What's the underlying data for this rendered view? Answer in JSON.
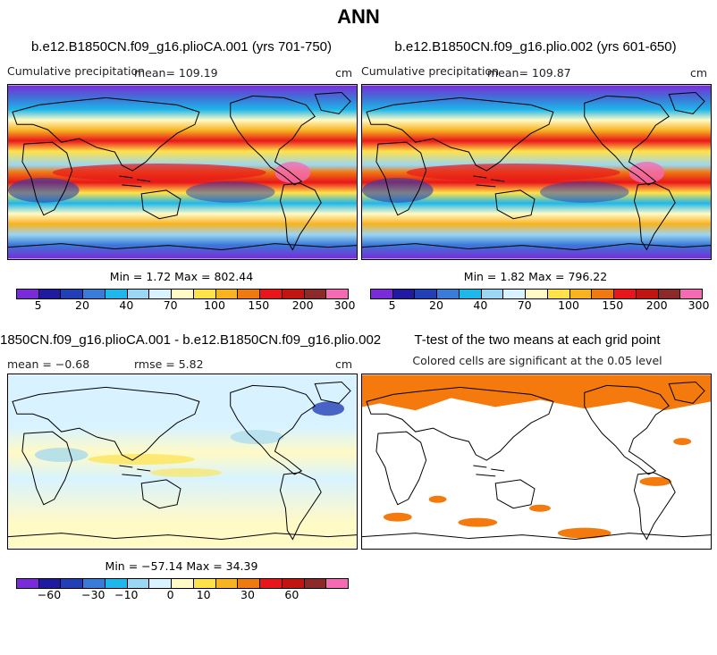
{
  "title": "ANN",
  "panels": {
    "top_left": {
      "title": "b.e12.B1850CN.f09_g16.plioCA.001 (yrs 701-750)",
      "variable": "Cumulative precipitation",
      "mean": "mean=  109.19",
      "units": "cm",
      "minmax": "Min =    1.72  Max =  802.44"
    },
    "top_right": {
      "title": "b.e12.B1850CN.f09_g16.plio.002 (yrs 601-650)",
      "variable": "Cumulative precipitation",
      "mean": "mean=  109.87",
      "units": "cm",
      "minmax": "Min =    1.82  Max =  796.22"
    },
    "bottom_left": {
      "title": "1850CN.f09_g16.plioCA.001 - b.e12.B1850CN.f09_g16.plio.002",
      "mean": "mean =   −0.68",
      "rmse": "rmse =    5.82",
      "units": "cm",
      "minmax": "Min = −57.14  Max =   34.39"
    },
    "bottom_right": {
      "title": "T-test of the two means at each grid point",
      "subtitle": "Colored cells are significant at the 0.05 level"
    }
  },
  "colorbars": {
    "precip": {
      "colors": [
        "#7a2bd9",
        "#1f1aa0",
        "#233fb5",
        "#3a7ad8",
        "#1fb6ea",
        "#9bd6f2",
        "#d8f3ff",
        "#fffac6",
        "#ffe24a",
        "#f8b321",
        "#f07a12",
        "#e8161a",
        "#c21410",
        "#8c2a2a",
        "#f46bb4"
      ],
      "labels": [
        "5",
        "20",
        "40",
        "70",
        "100",
        "150",
        "200",
        "300"
      ]
    },
    "diff": {
      "colors": [
        "#7a2bd9",
        "#1f1aa0",
        "#233fb5",
        "#3a7ad8",
        "#1fb6ea",
        "#9bd6f2",
        "#d8f3ff",
        "#fffac6",
        "#ffe24a",
        "#f8b321",
        "#f07a12",
        "#e8161a",
        "#c21410",
        "#8c2a2a",
        "#f46bb4"
      ],
      "labels": [
        "−60",
        "−30",
        "−10",
        "0",
        "10",
        "30",
        "60"
      ]
    },
    "significance_color": "#f47a0e"
  }
}
